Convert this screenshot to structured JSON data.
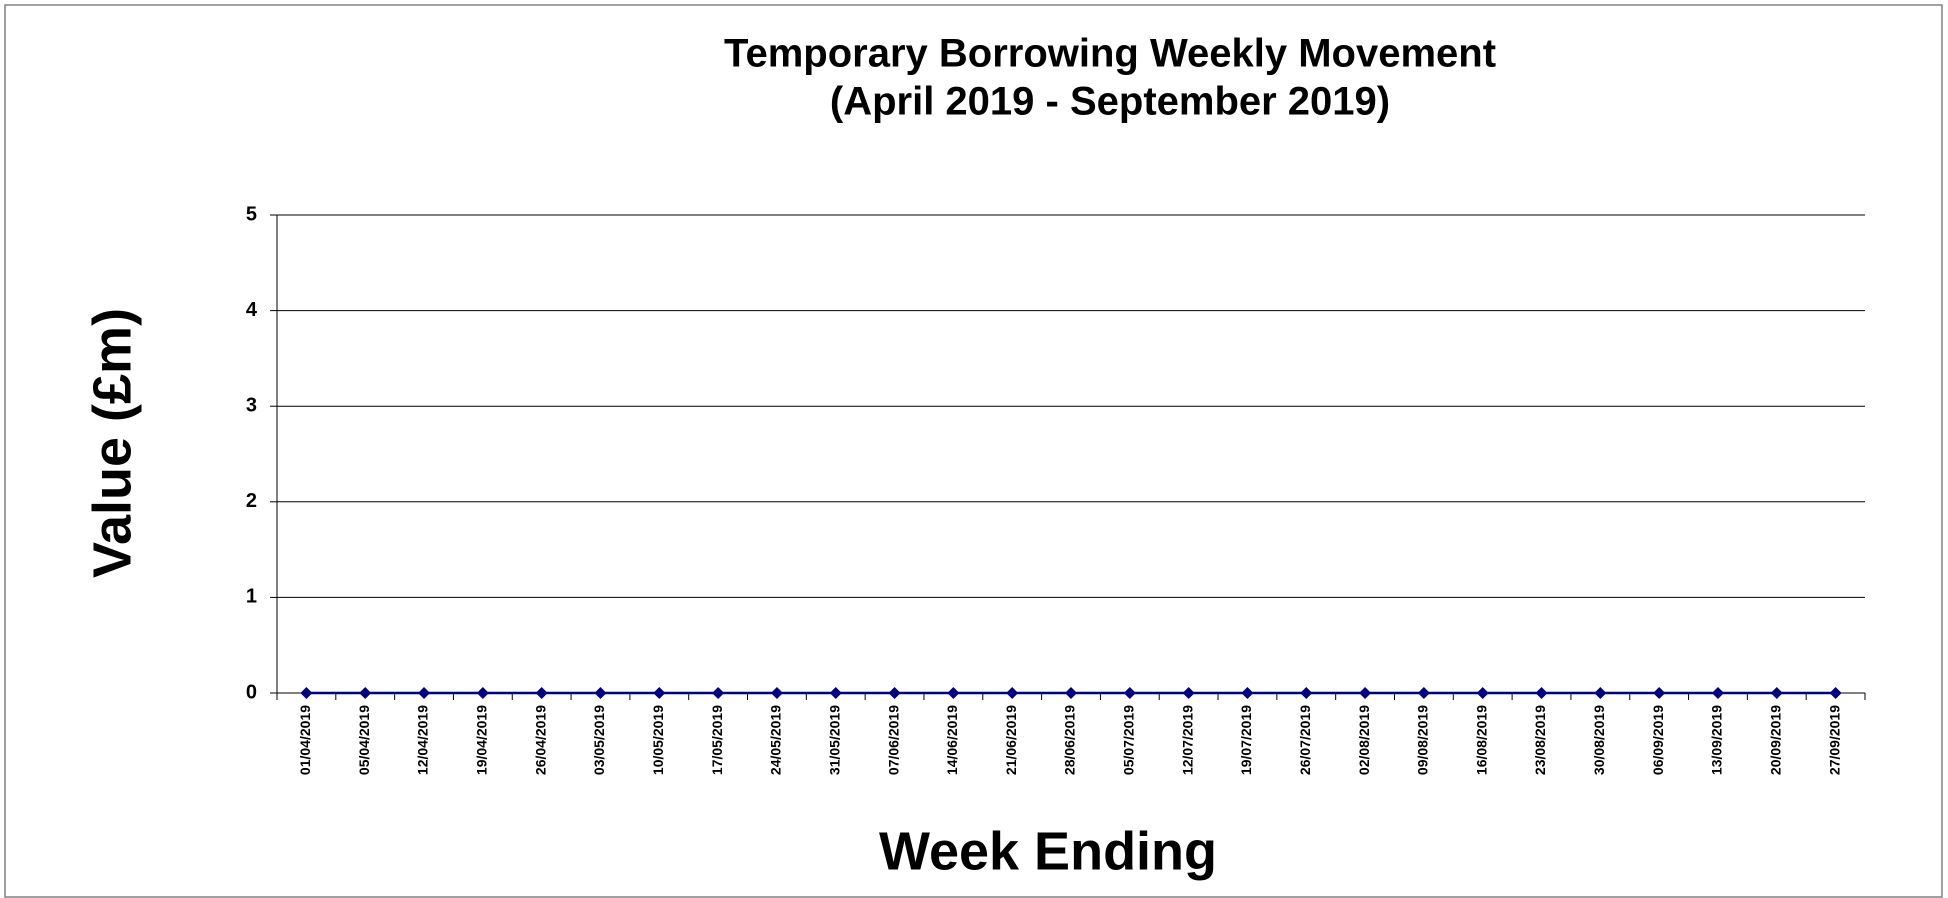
{
  "chart_data": {
    "type": "line",
    "title": "Temporary Borrowing Weekly Movement",
    "subtitle": "(April 2019 - September 2019)",
    "x_label": "Week Ending",
    "y_label": "Value (£m)",
    "categories": [
      "01/04/2019",
      "05/04/2019",
      "12/04/2019",
      "19/04/2019",
      "26/04/2019",
      "03/05/2019",
      "10/05/2019",
      "17/05/2019",
      "24/05/2019",
      "31/05/2019",
      "07/06/2019",
      "14/06/2019",
      "21/06/2019",
      "28/06/2019",
      "05/07/2019",
      "12/07/2019",
      "19/07/2019",
      "26/07/2019",
      "02/08/2019",
      "09/08/2019",
      "16/08/2019",
      "23/08/2019",
      "30/08/2019",
      "06/09/2019",
      "13/09/2019",
      "20/09/2019",
      "27/09/2019"
    ],
    "series": [
      {
        "color": "#000080",
        "values": [
          0,
          0,
          0,
          0,
          0,
          0,
          0,
          0,
          0,
          0,
          0,
          0,
          0,
          0,
          0,
          0,
          0,
          0,
          0,
          0,
          0,
          0,
          0,
          0,
          0,
          0,
          0
        ]
      }
    ],
    "ylim": [
      0,
      5
    ],
    "yticks": [
      0,
      1,
      2,
      3,
      4,
      5
    ],
    "grid": true
  }
}
